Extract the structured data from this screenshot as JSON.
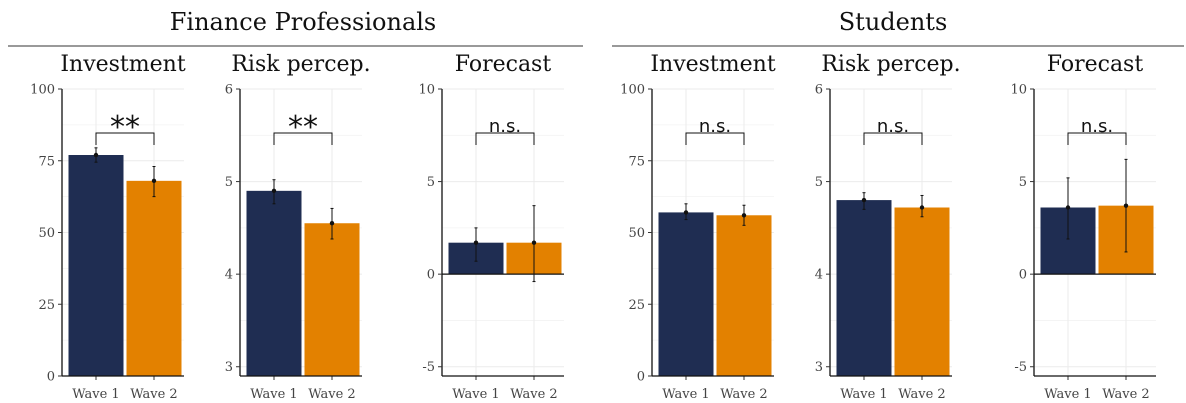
{
  "colors": {
    "wave1": "#1f2d52",
    "wave2": "#e38100"
  },
  "chart_data": [
    {
      "type": "bar",
      "group": "Finance Professionals",
      "title": "Investment",
      "categories": [
        "Wave 1",
        "Wave 2"
      ],
      "values": [
        77,
        68
      ],
      "errors": [
        [
          74.5,
          79.5
        ],
        [
          62.5,
          73
        ]
      ],
      "ylim": [
        0,
        100
      ],
      "yticks": [
        0,
        25,
        50,
        75,
        100
      ],
      "significance": "**"
    },
    {
      "type": "bar",
      "group": "Finance Professionals",
      "title": "Risk percep.",
      "categories": [
        "Wave 1",
        "Wave 2"
      ],
      "values": [
        4.9,
        4.55
      ],
      "errors": [
        [
          4.76,
          5.02
        ],
        [
          4.38,
          4.71
        ]
      ],
      "ylim": [
        2.9,
        6
      ],
      "yticks": [
        3,
        4,
        5,
        6
      ],
      "baseline": 2.9,
      "significance": "**"
    },
    {
      "type": "bar",
      "group": "Finance Professionals",
      "title": "Forecast",
      "categories": [
        "Wave 1",
        "Wave 2"
      ],
      "values": [
        1.7,
        1.7
      ],
      "errors": [
        [
          0.7,
          2.5
        ],
        [
          -0.4,
          3.7
        ]
      ],
      "ylim": [
        -5.5,
        10
      ],
      "yticks": [
        -5,
        0,
        5,
        10
      ],
      "baseline": 0,
      "significance": "n.s."
    },
    {
      "type": "bar",
      "group": "Students",
      "title": "Investment",
      "categories": [
        "Wave 1",
        "Wave 2"
      ],
      "values": [
        57,
        56
      ],
      "errors": [
        [
          54.5,
          60
        ],
        [
          52.5,
          59.5
        ]
      ],
      "ylim": [
        0,
        100
      ],
      "yticks": [
        0,
        25,
        50,
        75,
        100
      ],
      "significance": "n.s."
    },
    {
      "type": "bar",
      "group": "Students",
      "title": "Risk percep.",
      "categories": [
        "Wave 1",
        "Wave 2"
      ],
      "values": [
        4.8,
        4.72
      ],
      "errors": [
        [
          4.7,
          4.88
        ],
        [
          4.62,
          4.85
        ]
      ],
      "ylim": [
        2.9,
        6
      ],
      "yticks": [
        3,
        4,
        5,
        6
      ],
      "baseline": 2.9,
      "significance": "n.s."
    },
    {
      "type": "bar",
      "group": "Students",
      "title": "Forecast",
      "categories": [
        "Wave 1",
        "Wave 2"
      ],
      "values": [
        3.6,
        3.7
      ],
      "errors": [
        [
          1.9,
          5.2
        ],
        [
          1.2,
          6.2
        ]
      ],
      "ylim": [
        -5.5,
        10
      ],
      "yticks": [
        -5,
        0,
        5,
        10
      ],
      "baseline": 0,
      "significance": "n.s."
    }
  ]
}
